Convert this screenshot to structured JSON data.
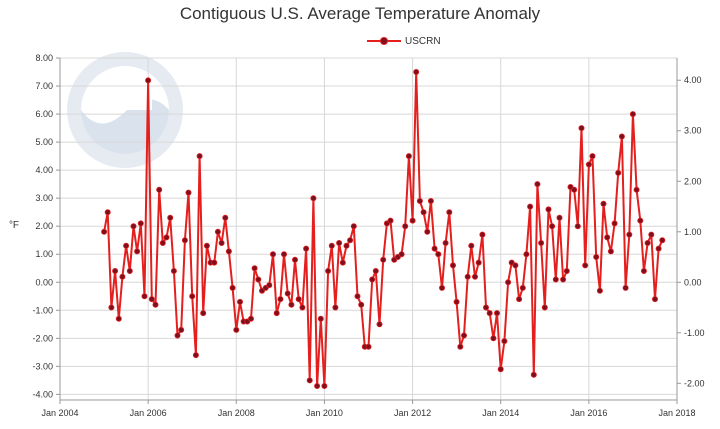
{
  "chart_data": {
    "type": "line",
    "title": "Contiguous U.S. Average Temperature Anomaly",
    "ylabel": "°F",
    "legend": {
      "position": "top-center",
      "entries": [
        "USCRN"
      ]
    },
    "grid": true,
    "x_ticks": [
      "Jan 2004",
      "Jan 2006",
      "Jan 2008",
      "Jan 2010",
      "Jan 2012",
      "Jan 2014",
      "Jan 2016",
      "Jan 2018"
    ],
    "xlim": [
      2004,
      2018
    ],
    "y_ticks_left": [
      "8.00",
      "7.00",
      "6.00",
      "5.00",
      "4.00",
      "3.00",
      "2.00",
      "1.00",
      "0.00",
      "-1.00",
      "-2.00",
      "-3.00",
      "-4.00"
    ],
    "ylim_left": [
      -4.2,
      8.0
    ],
    "y_ticks_right": [
      "4.00",
      "3.00",
      "2.00",
      "1.00",
      "0.00",
      "-1.00",
      "-2.00"
    ],
    "ylim_right_celsius": [
      -2.33,
      4.44
    ],
    "colors": {
      "line": "#e4201f",
      "marker": "#7a1020",
      "grid": "#d8d8d8",
      "axis": "#999999"
    },
    "series": [
      {
        "name": "USCRN",
        "start": "2005-01",
        "interval": "monthly",
        "values": [
          1.8,
          2.5,
          -0.9,
          0.4,
          -1.3,
          0.2,
          1.3,
          0.4,
          2.0,
          1.1,
          2.1,
          -0.5,
          7.2,
          -0.6,
          -0.8,
          3.3,
          1.4,
          1.6,
          2.3,
          0.4,
          -1.9,
          -1.7,
          1.5,
          3.2,
          -0.5,
          -2.6,
          4.5,
          -1.1,
          1.3,
          0.7,
          0.7,
          1.8,
          1.4,
          2.3,
          1.1,
          -0.2,
          -1.7,
          -0.7,
          -1.4,
          -1.4,
          -1.3,
          0.5,
          0.1,
          -0.3,
          -0.2,
          -0.1,
          1.0,
          -1.1,
          -0.6,
          1.0,
          -0.4,
          -0.8,
          0.8,
          -0.6,
          -0.9,
          1.2,
          -3.5,
          3.0,
          -3.7,
          -1.3,
          -3.7,
          0.4,
          1.3,
          -0.9,
          1.4,
          0.7,
          1.3,
          1.5,
          2.0,
          -0.5,
          -0.8,
          -2.3,
          -2.3,
          0.1,
          0.4,
          -1.5,
          0.8,
          2.1,
          2.2,
          0.8,
          0.9,
          1.0,
          2.0,
          4.5,
          2.2,
          7.5,
          2.9,
          2.5,
          1.8,
          2.9,
          1.2,
          1.0,
          -0.2,
          1.4,
          2.5,
          0.6,
          -0.7,
          -2.3,
          -1.9,
          0.2,
          1.3,
          0.2,
          0.7,
          1.7,
          -0.9,
          -1.1,
          -2.0,
          -1.1,
          -3.1,
          -2.1,
          0.0,
          0.7,
          0.6,
          -0.6,
          -0.2,
          1.0,
          2.7,
          -3.3,
          3.5,
          1.4,
          -0.9,
          2.6,
          2.0,
          0.1,
          2.3,
          0.1,
          0.4,
          3.4,
          3.3,
          2.0,
          5.5,
          0.6,
          4.2,
          4.5,
          0.9,
          -0.3,
          2.8,
          1.6,
          1.1,
          2.1,
          3.9,
          5.2,
          -0.2,
          1.7,
          6.0,
          3.3,
          2.2,
          0.4,
          1.4,
          1.7,
          -0.6,
          1.2,
          1.5
        ]
      }
    ]
  }
}
